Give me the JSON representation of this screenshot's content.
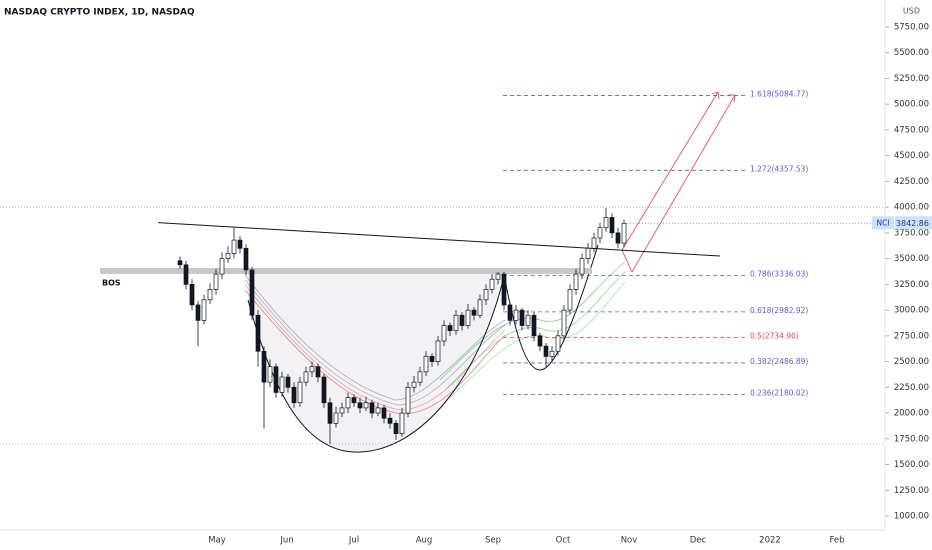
{
  "chart_data": {
    "type": "candlestick",
    "title": "NASDAQ CRYPTO INDEX, 1D, NASDAQ",
    "currency": "USD",
    "categories": [
      "May",
      "Jun",
      "Jul",
      "Aug",
      "Sep",
      "Oct",
      "Nov",
      "Dec",
      "2022",
      "Feb"
    ],
    "open": [
      3480,
      3440,
      3250,
      3050,
      2900,
      3100,
      3200,
      3350,
      3500,
      3550,
      3680,
      3600,
      3390,
      2950,
      2600,
      2300,
      2450,
      2200,
      2350,
      2250,
      2100,
      2300,
      2400,
      2450,
      2350,
      2100,
      1900,
      2000,
      2050,
      2150,
      2100,
      2050,
      2100,
      2000,
      2050,
      1950,
      1900,
      1800,
      2000,
      2250,
      2300,
      2400,
      2550,
      2500,
      2700,
      2850,
      2800,
      2950,
      2850,
      3000,
      2950,
      3100,
      3200,
      3300,
      3350,
      3050,
      2900,
      3000,
      2850,
      2950,
      2750,
      2650,
      2550,
      2600,
      2750,
      3000,
      3200,
      3350,
      3500,
      3600,
      3700,
      3800,
      3900,
      3750,
      3650
    ],
    "high": [
      3520,
      3480,
      3300,
      3090,
      3150,
      3260,
      3400,
      3560,
      3620,
      3800,
      3720,
      3640,
      3420,
      3000,
      2650,
      2520,
      2480,
      2400,
      2380,
      2300,
      2350,
      2450,
      2500,
      2480,
      2380,
      2150,
      2060,
      2100,
      2200,
      2180,
      2150,
      2160,
      2130,
      2100,
      2080,
      2000,
      1930,
      2050,
      2300,
      2360,
      2450,
      2600,
      2580,
      2750,
      2900,
      2880,
      3000,
      2980,
      3060,
      3030,
      3150,
      3250,
      3350,
      3370,
      3370,
      3080,
      3050,
      3020,
      3000,
      2980,
      2780,
      2680,
      2650,
      2800,
      3050,
      3250,
      3400,
      3550,
      3650,
      3750,
      3850,
      3990,
      3940,
      3800,
      3880
    ],
    "low": [
      3400,
      3200,
      3000,
      2650,
      2860,
      3060,
      3150,
      3300,
      3460,
      3500,
      3550,
      3340,
      2900,
      2450,
      1850,
      2250,
      2150,
      2160,
      2200,
      2050,
      2060,
      2260,
      2350,
      2300,
      2050,
      1700,
      1860,
      1960,
      2000,
      2060,
      2000,
      2020,
      1950,
      1970,
      1900,
      1850,
      1740,
      1770,
      1960,
      2200,
      2260,
      2360,
      2450,
      2460,
      2650,
      2750,
      2760,
      2800,
      2820,
      2900,
      2920,
      3050,
      3160,
      3250,
      3000,
      2850,
      2860,
      2800,
      2810,
      2700,
      2600,
      2450,
      2500,
      2560,
      2700,
      2960,
      3150,
      3300,
      3450,
      3560,
      3650,
      3760,
      3700,
      3600,
      3610
    ],
    "close": [
      3440,
      3250,
      3050,
      2900,
      3100,
      3200,
      3350,
      3500,
      3550,
      3680,
      3600,
      3390,
      2950,
      2600,
      2300,
      2450,
      2200,
      2350,
      2250,
      2100,
      2300,
      2400,
      2450,
      2350,
      2100,
      1900,
      2000,
      2050,
      2150,
      2100,
      2050,
      2100,
      2000,
      2050,
      1950,
      1900,
      1800,
      2000,
      2250,
      2300,
      2400,
      2550,
      2500,
      2700,
      2850,
      2800,
      2950,
      2850,
      3000,
      2950,
      3100,
      3200,
      3300,
      3350,
      3050,
      2900,
      3000,
      2850,
      2950,
      2750,
      2650,
      2550,
      2600,
      2750,
      3000,
      3200,
      3350,
      3500,
      3600,
      3700,
      3800,
      3900,
      3750,
      3650,
      3842.86
    ],
    "up_color": "#ffffff",
    "down_color": "#131722",
    "ylim": [
      864,
      6012
    ],
    "yticks": [
      {
        "value": 1000,
        "label": "1000.00"
      },
      {
        "value": 1250,
        "label": "1250.00"
      },
      {
        "value": 1500,
        "label": "1500.00"
      },
      {
        "value": 1750,
        "label": "1750.00"
      },
      {
        "value": 2000,
        "label": "2000.00"
      },
      {
        "value": 2250,
        "label": "2250.00"
      },
      {
        "value": 2500,
        "label": "2500.00"
      },
      {
        "value": 2750,
        "label": "2750.00"
      },
      {
        "value": 3000,
        "label": "3000.00"
      },
      {
        "value": 3250,
        "label": "3250.00"
      },
      {
        "value": 3500,
        "label": "3500.00"
      },
      {
        "value": 3750,
        "label": "3750.00"
      },
      {
        "value": 4000,
        "label": "4000.00"
      },
      {
        "value": 4250,
        "label": "4250.00"
      },
      {
        "value": 4500,
        "label": "4500.00"
      },
      {
        "value": 4750,
        "label": "4750.00"
      },
      {
        "value": 5000,
        "label": "5000.00"
      },
      {
        "value": 5250,
        "label": "5250.00"
      },
      {
        "value": 5500,
        "label": "5500.00"
      },
      {
        "value": 5750,
        "label": "5750.00"
      }
    ],
    "fib_levels": [
      {
        "value": 5084.77,
        "label": "1.618(5084.77)",
        "color": "#5c5ccf"
      },
      {
        "value": 4357.53,
        "label": "1.272(4357.53)",
        "color": "#5c5ccf"
      },
      {
        "value": 3336.03,
        "label": "0.786(3336.03)",
        "color": "#5c5ccf"
      },
      {
        "value": 2982.92,
        "label": "0.618(2982.92)",
        "color": "#5c5ccf"
      },
      {
        "value": 2734.9,
        "label": "0.5(2734.90)",
        "color": "#e04848"
      },
      {
        "value": 2486.89,
        "label": "0.382(2486.89)",
        "color": "#5c5ccf"
      },
      {
        "value": 2180.02,
        "label": "0.236(2180.02)",
        "color": "#5c5ccf"
      }
    ],
    "hlines": [
      4000,
      1700
    ],
    "trendline": [
      3850,
      3525
    ],
    "bos_level": 3380,
    "bos_label": "BOS",
    "last_price": {
      "symbol": "NCI",
      "value": 3842.86
    }
  }
}
